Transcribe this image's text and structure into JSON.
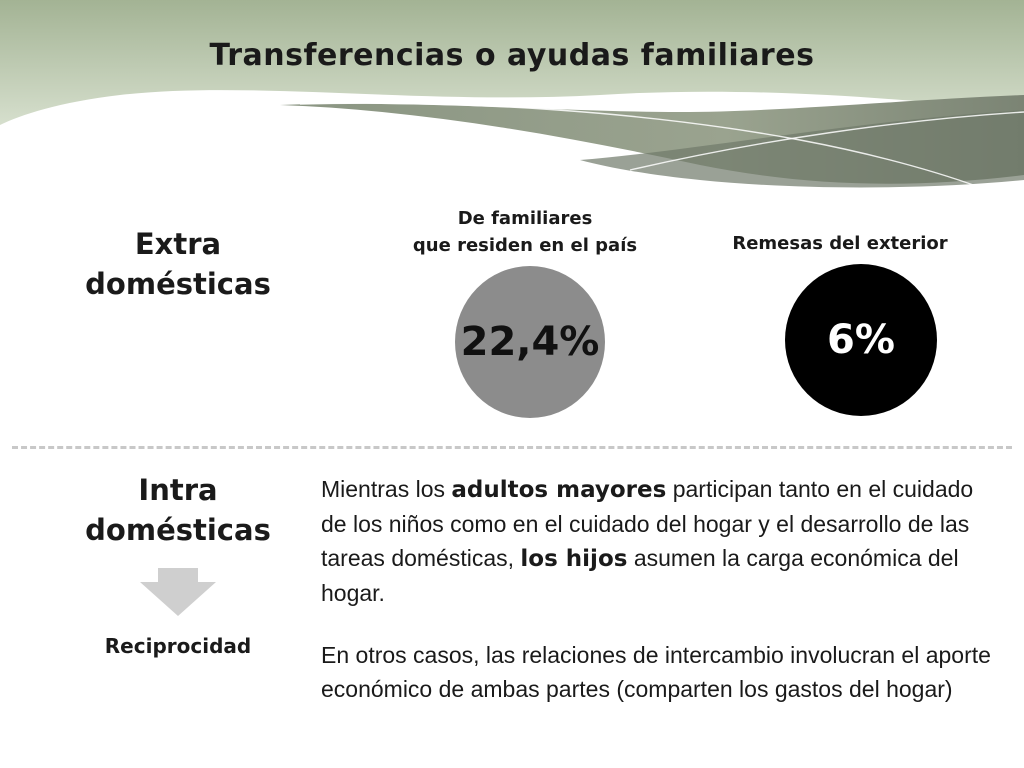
{
  "title": "Transferencias o ayudas familiares",
  "extra": {
    "label_line1": "Extra",
    "label_line2": "domésticas",
    "items": [
      {
        "caption_line1": "De familiares",
        "caption_line2": "que residen en el país",
        "value": "22,4%",
        "color": "#8c8c8c"
      },
      {
        "caption_line1": "Remesas del exterior",
        "value": "6%",
        "color": "#000000"
      }
    ]
  },
  "intra": {
    "label_line1": "Intra",
    "label_line2": "domésticas",
    "arrow_icon": "down-arrow-icon",
    "reciprocity_label": "Reciprocidad",
    "paragraph1": {
      "t1": "Mientras los ",
      "b1": "adultos mayores",
      "t2": " participan tanto en el cuidado de los niños como en el cuidado del hogar y el desarrollo de las tareas domésticas, ",
      "b2": "los hijos",
      "t3": " asumen la carga económica del hogar."
    },
    "paragraph2": "En otros casos, las relaciones de intercambio involucran el aporte económico de ambas partes (comparten los gastos del hogar)"
  },
  "colors": {
    "header_green": "#a9b99c",
    "header_dark": "#7f8877",
    "arrow_gray": "#cfcfcf",
    "divider_gray": "#c8c8c8"
  }
}
